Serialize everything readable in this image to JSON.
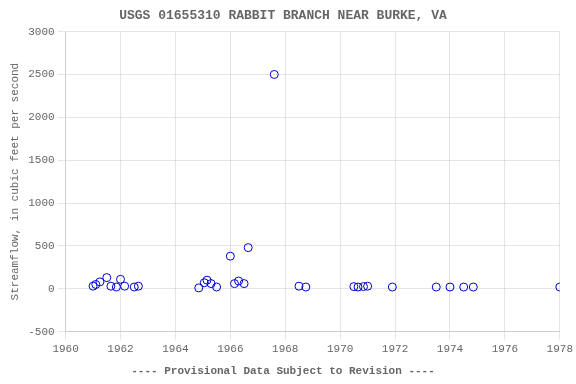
{
  "chart_data": {
    "type": "scatter",
    "title": "USGS 01655310 RABBIT BRANCH NEAR BURKE, VA",
    "subtitle": "---- Provisional Data Subject to Revision ----",
    "ylabel": "Streamflow, in cubic feet per second",
    "x": [
      1961.0,
      1961.1,
      1961.25,
      1961.5,
      1961.65,
      1961.85,
      1962.0,
      1962.15,
      1962.5,
      1962.65,
      1964.85,
      1965.05,
      1965.15,
      1965.3,
      1965.5,
      1966.0,
      1966.15,
      1966.3,
      1966.5,
      1966.65,
      1967.6,
      1968.5,
      1968.75,
      1970.5,
      1970.65,
      1970.85,
      1971.0,
      1971.9,
      1973.5,
      1974.0,
      1974.5,
      1974.85,
      1978.0
    ],
    "values": [
      30,
      50,
      80,
      130,
      30,
      20,
      110,
      30,
      20,
      30,
      10,
      70,
      100,
      60,
      20,
      380,
      60,
      90,
      60,
      480,
      2500,
      30,
      20,
      25,
      20,
      25,
      30,
      20,
      20,
      20,
      20,
      20,
      20
    ],
    "color": "#0000cc",
    "marker": "circle",
    "xlim": [
      1960,
      1978
    ],
    "ylim": [
      -500,
      3000
    ],
    "xticks": [
      1960,
      1962,
      1964,
      1966,
      1968,
      1970,
      1972,
      1974,
      1976,
      1978
    ],
    "yticks": [
      -500,
      0,
      500,
      1000,
      1500,
      2000,
      2500,
      3000
    ],
    "grid": true
  }
}
